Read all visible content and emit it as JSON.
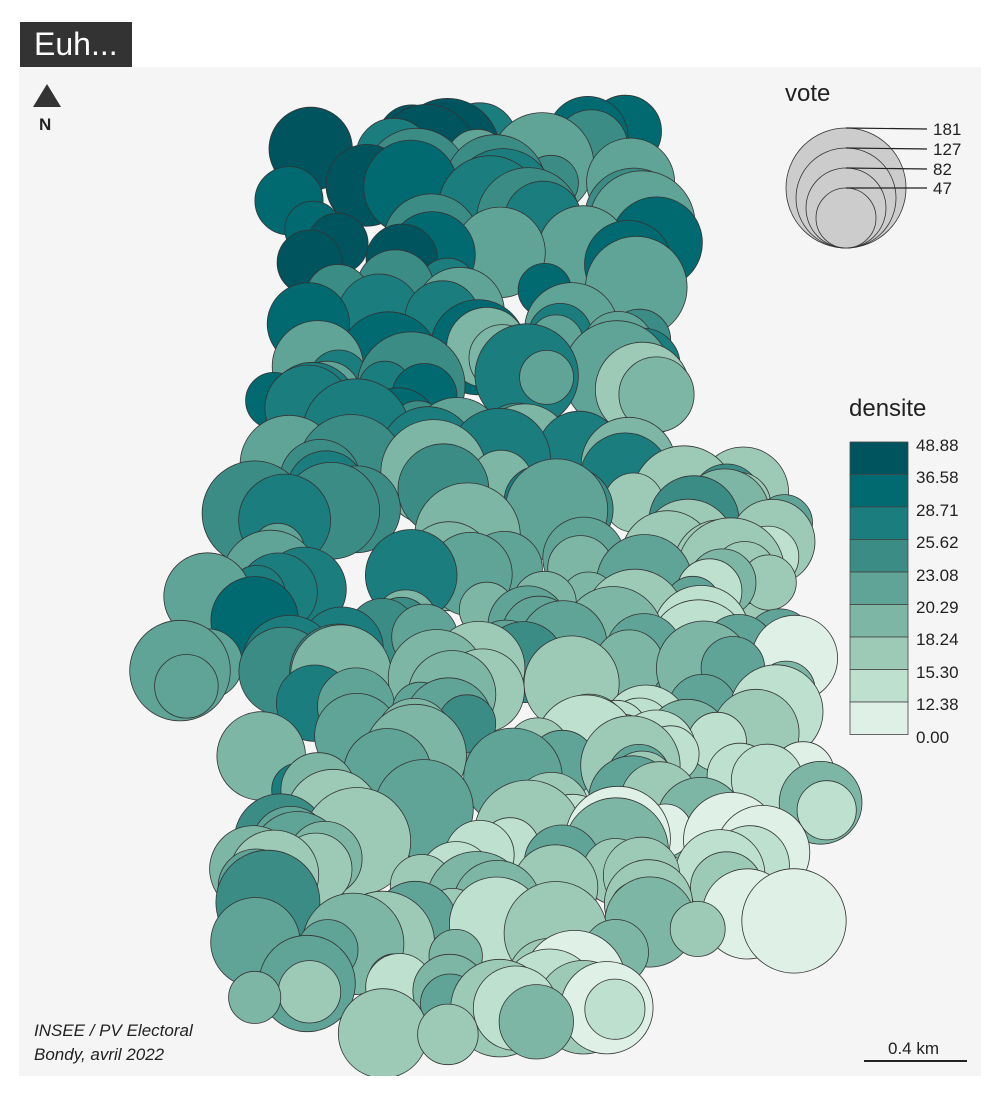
{
  "title": "Euh...",
  "north_label": "N",
  "source_lines": [
    "INSEE / PV Electoral",
    "Bondy, avril 2022"
  ],
  "scale_label": "0.4 km",
  "legend_size": {
    "title": "vote",
    "values": [
      "181",
      "127",
      "82",
      "47"
    ]
  },
  "legend_color": {
    "title": "densite",
    "breaks": [
      "48.88",
      "36.58",
      "28.71",
      "25.62",
      "23.08",
      "20.29",
      "18.24",
      "15.30",
      "12.38",
      "0.00"
    ],
    "colors": [
      "#00545e",
      "#006a70",
      "#1b7d7e",
      "#3c8c86",
      "#60a397",
      "#7db6a5",
      "#9dcab7",
      "#bde0cf",
      "#dff0e6"
    ]
  },
  "colors": {
    "background": "#f5f5f5",
    "legend_circle": "#cccccc",
    "title_box": "#333333"
  }
}
